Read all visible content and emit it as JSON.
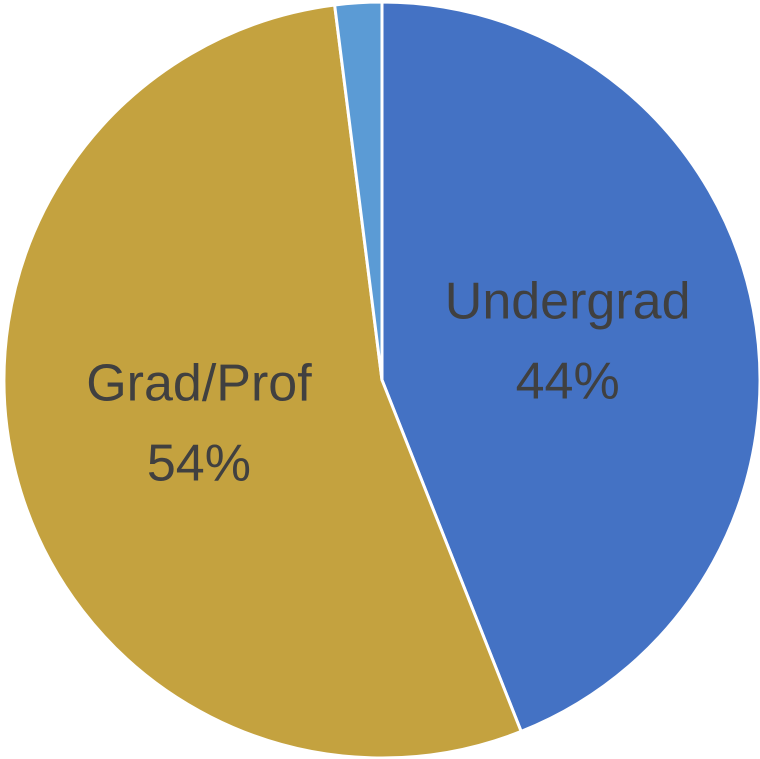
{
  "chart_data": {
    "type": "pie",
    "categories": [
      "Undergrad",
      "Grad/Prof",
      null
    ],
    "values": [
      44,
      54,
      2
    ],
    "value_labels": [
      "44%",
      "54%",
      null
    ],
    "colors": [
      "#4472c4",
      "#c4a23f",
      "#5b9bd5"
    ]
  }
}
